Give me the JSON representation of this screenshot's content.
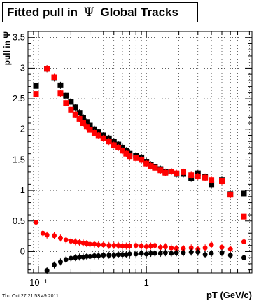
{
  "title": {
    "prefix": "Fitted pull in",
    "symbol": "Ψ",
    "suffix": "Global Tracks"
  },
  "timestamp": "Thu Oct 27 21:53:49 2011",
  "chart_data": {
    "type": "scatter",
    "title": "Fitted pull in Ψ Global Tracks",
    "xlabel": "pT (GeV/c)",
    "ylabel": "pull in Ψ",
    "xscale": "log",
    "xlim": [
      0.08,
      9.5
    ],
    "ylim": [
      -0.35,
      3.6
    ],
    "grid": true,
    "x_ticks": [
      {
        "v": 0.1,
        "label": "10⁻¹"
      },
      {
        "v": 1,
        "label": "1"
      }
    ],
    "y_ticks": [
      0,
      0.5,
      1,
      1.5,
      2,
      2.5,
      3,
      3.5
    ],
    "y_tick_labels": [
      "0",
      "0.5",
      "1",
      "1.5",
      "2",
      "2.5",
      "3",
      "3.5"
    ],
    "series": [
      {
        "color": "#000000",
        "marker": "square",
        "x": [
          0.095,
          0.12,
          0.14,
          0.16,
          0.18,
          0.2,
          0.22,
          0.24,
          0.26,
          0.28,
          0.3,
          0.33,
          0.36,
          0.4,
          0.45,
          0.5,
          0.55,
          0.6,
          0.65,
          0.7,
          0.8,
          0.9,
          1.0,
          1.1,
          1.2,
          1.35,
          1.5,
          1.7,
          1.9,
          2.2,
          2.6,
          3.0,
          3.5,
          4.0,
          5.0,
          6.0,
          8.0
        ],
        "y": [
          2.71,
          2.99,
          2.84,
          2.72,
          2.55,
          2.45,
          2.36,
          2.27,
          2.19,
          2.12,
          2.06,
          2.0,
          1.95,
          1.9,
          1.85,
          1.8,
          1.75,
          1.7,
          1.65,
          1.6,
          1.57,
          1.54,
          1.47,
          1.42,
          1.38,
          1.35,
          1.3,
          1.31,
          1.27,
          1.27,
          1.2,
          1.28,
          1.22,
          1.1,
          1.17,
          0.94,
          0.95
        ]
      },
      {
        "color": "#ff0000",
        "marker": "square",
        "x": [
          0.095,
          0.12,
          0.14,
          0.16,
          0.18,
          0.2,
          0.22,
          0.24,
          0.26,
          0.28,
          0.3,
          0.33,
          0.36,
          0.4,
          0.45,
          0.5,
          0.55,
          0.6,
          0.65,
          0.7,
          0.8,
          0.9,
          1.0,
          1.1,
          1.2,
          1.35,
          1.5,
          1.7,
          1.9,
          2.2,
          2.6,
          3.0,
          3.5,
          4.0,
          5.0,
          6.0,
          8.0
        ],
        "y": [
          2.58,
          2.99,
          2.85,
          2.59,
          2.43,
          2.32,
          2.24,
          2.17,
          2.1,
          2.04,
          1.99,
          1.94,
          1.9,
          1.85,
          1.8,
          1.74,
          1.7,
          1.65,
          1.6,
          1.56,
          1.53,
          1.5,
          1.44,
          1.4,
          1.37,
          1.33,
          1.29,
          1.31,
          1.28,
          1.3,
          1.25,
          1.23,
          1.21,
          1.17,
          1.15,
          0.93,
          0.57
        ]
      },
      {
        "color": "#ff0000",
        "marker": "circle",
        "x": [
          0.095,
          0.11,
          0.12,
          0.14,
          0.16,
          0.18,
          0.2,
          0.22,
          0.24,
          0.26,
          0.28,
          0.3,
          0.33,
          0.36,
          0.4,
          0.45,
          0.5,
          0.55,
          0.6,
          0.65,
          0.7,
          0.8,
          0.9,
          1.0,
          1.1,
          1.2,
          1.35,
          1.5,
          1.7,
          1.9,
          2.2,
          2.6,
          3.0,
          3.5,
          4.0,
          5.0,
          6.0,
          8.0
        ],
        "y": [
          0.48,
          0.3,
          0.27,
          0.26,
          0.22,
          0.19,
          0.17,
          0.16,
          0.15,
          0.14,
          0.13,
          0.12,
          0.12,
          0.11,
          0.11,
          0.1,
          0.1,
          0.1,
          0.09,
          0.09,
          0.09,
          0.1,
          0.09,
          0.08,
          0.09,
          0.1,
          0.07,
          0.08,
          0.06,
          0.05,
          0.05,
          0.06,
          0.04,
          0.06,
          0.11,
          0.07,
          0.04,
          0.16
        ]
      },
      {
        "color": "#000000",
        "marker": "circle",
        "x": [
          0.12,
          0.14,
          0.16,
          0.18,
          0.2,
          0.22,
          0.24,
          0.26,
          0.28,
          0.3,
          0.33,
          0.36,
          0.4,
          0.45,
          0.5,
          0.55,
          0.6,
          0.65,
          0.7,
          0.8,
          0.9,
          1.0,
          1.1,
          1.2,
          1.35,
          1.5,
          1.7,
          1.9,
          2.2,
          2.6,
          3.0,
          3.5,
          4.0,
          5.0,
          6.0,
          8.0
        ],
        "y": [
          -0.31,
          -0.22,
          -0.17,
          -0.13,
          -0.11,
          -0.1,
          -0.09,
          -0.09,
          -0.08,
          -0.08,
          -0.07,
          -0.07,
          -0.06,
          -0.06,
          -0.06,
          -0.05,
          -0.05,
          -0.05,
          -0.04,
          -0.04,
          -0.03,
          -0.04,
          -0.03,
          -0.03,
          -0.03,
          -0.02,
          -0.03,
          -0.02,
          -0.02,
          -0.01,
          -0.01,
          -0.05,
          -0.03,
          -0.02,
          -0.06,
          -0.1
        ]
      }
    ]
  }
}
